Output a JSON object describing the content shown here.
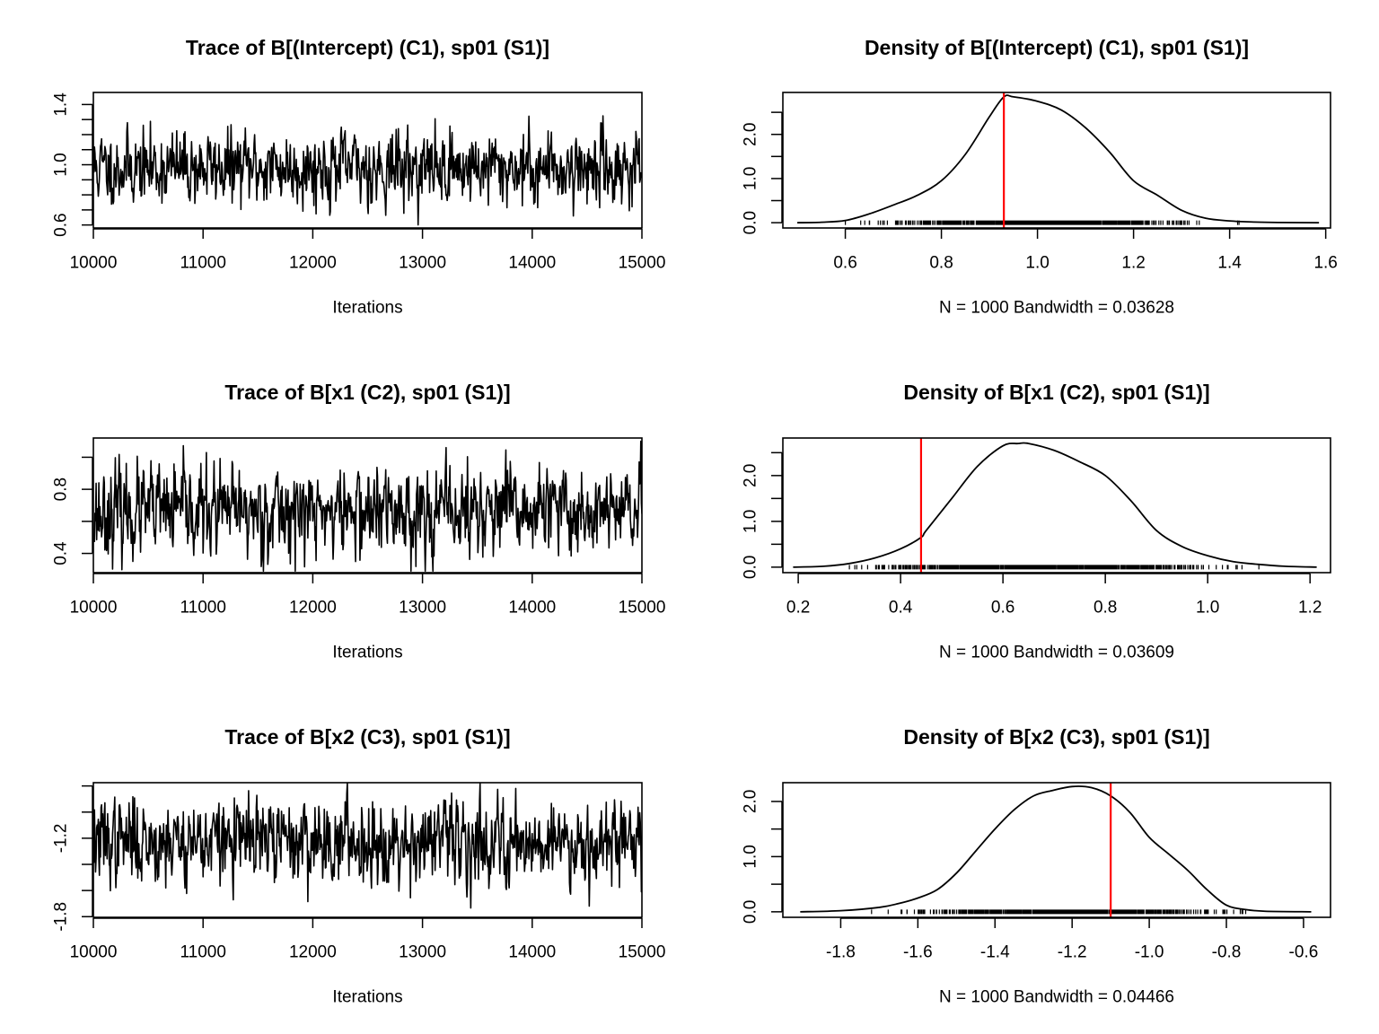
{
  "chart_data": [
    {
      "type": "line",
      "panel": "trace",
      "title": "Trace of B[(Intercept) (C1), sp01 (S1)]",
      "xlabel": "Iterations",
      "ylabel": "",
      "xlim": [
        10000,
        15000
      ],
      "ylim": [
        0.58,
        1.48
      ],
      "xticks": [
        10000,
        11000,
        12000,
        13000,
        14000,
        15000
      ],
      "yticks": [
        0.6,
        0.7,
        0.8,
        0.9,
        1.0,
        1.1,
        1.2,
        1.3,
        1.4
      ],
      "ytick_labels": [
        "0.6",
        "",
        "",
        "",
        "1.0",
        "",
        "",
        "",
        "1.4"
      ],
      "grid": false,
      "series": [
        {
          "color": "#000000",
          "n": 1000,
          "start": 10005,
          "step": 5,
          "mean": 0.98,
          "sd": 0.12,
          "min": 0.6,
          "max": 1.47,
          "phi": 0.3,
          "seed": 11
        }
      ]
    },
    {
      "type": "line",
      "panel": "density",
      "title": "Density of B[(Intercept) (C1), sp01 (S1)]",
      "xlabel": "N = 1000   Bandwidth = 0.03628",
      "ylabel": "",
      "xlim": [
        0.47,
        1.61
      ],
      "ylim": [
        -0.12,
        2.95
      ],
      "xticks": [
        0.6,
        0.8,
        1.0,
        1.2,
        1.4,
        1.6
      ],
      "xtick_labels": [
        "0.6",
        "0.8",
        "1.0",
        "1.2",
        "1.4",
        "1.6"
      ],
      "yticks": [
        0.0,
        0.5,
        1.0,
        1.5,
        2.0,
        2.5
      ],
      "ytick_labels": [
        "0.0",
        "",
        "1.0",
        "",
        "2.0",
        ""
      ],
      "grid": false,
      "x": [
        0.5,
        0.55,
        0.6,
        0.65,
        0.7,
        0.75,
        0.8,
        0.85,
        0.9,
        0.93,
        0.95,
        1.0,
        1.05,
        1.1,
        1.15,
        1.2,
        1.25,
        1.3,
        1.35,
        1.4,
        1.45,
        1.5,
        1.586
      ],
      "y": [
        0.0,
        0.01,
        0.05,
        0.2,
        0.4,
        0.62,
        0.95,
        1.55,
        2.4,
        2.85,
        2.85,
        2.75,
        2.55,
        2.15,
        1.6,
        0.95,
        0.62,
        0.28,
        0.1,
        0.04,
        0.015,
        0.005,
        0.0
      ],
      "rug": {
        "n": 1000,
        "mean": 0.99,
        "sd": 0.135,
        "min": 0.6,
        "max": 1.48
      },
      "reference_line": {
        "x": 0.93,
        "color": "#ff0000"
      }
    },
    {
      "type": "line",
      "panel": "trace",
      "title": "Trace of B[x1 (C2), sp01 (S1)]",
      "xlabel": "Iterations",
      "ylabel": "",
      "xlim": [
        10000,
        15000
      ],
      "ylim": [
        0.28,
        1.12
      ],
      "xticks": [
        10000,
        11000,
        12000,
        13000,
        14000,
        15000
      ],
      "yticks": [
        0.4,
        0.6,
        0.8,
        1.0
      ],
      "ytick_labels": [
        "0.4",
        "",
        "0.8",
        ""
      ],
      "grid": false,
      "series": [
        {
          "color": "#000000",
          "n": 1000,
          "start": 10005,
          "step": 5,
          "mean": 0.66,
          "sd": 0.14,
          "min": 0.29,
          "max": 1.1,
          "phi": 0.3,
          "seed": 23
        }
      ]
    },
    {
      "type": "line",
      "panel": "density",
      "title": "Density of B[x1 (C2), sp01 (S1)]",
      "xlabel": "N = 1000   Bandwidth = 0.03609",
      "ylabel": "",
      "xlim": [
        0.17,
        1.24
      ],
      "ylim": [
        -0.12,
        2.82
      ],
      "xticks": [
        0.2,
        0.4,
        0.6,
        0.8,
        1.0,
        1.2
      ],
      "xtick_labels": [
        "0.2",
        "0.4",
        "0.6",
        "0.8",
        "1.0",
        "1.2"
      ],
      "yticks": [
        0.0,
        0.5,
        1.0,
        1.5,
        2.0,
        2.5
      ],
      "ytick_labels": [
        "0.0",
        "",
        "1.0",
        "",
        "2.0",
        ""
      ],
      "grid": false,
      "x": [
        0.19,
        0.25,
        0.3,
        0.35,
        0.4,
        0.44,
        0.45,
        0.5,
        0.55,
        0.6,
        0.63,
        0.65,
        0.7,
        0.75,
        0.8,
        0.85,
        0.9,
        0.95,
        1.0,
        1.05,
        1.1,
        1.15,
        1.213
      ],
      "y": [
        0.0,
        0.02,
        0.08,
        0.2,
        0.4,
        0.65,
        0.8,
        1.5,
        2.2,
        2.65,
        2.7,
        2.7,
        2.55,
        2.3,
        2.0,
        1.45,
        0.8,
        0.45,
        0.25,
        0.12,
        0.06,
        0.02,
        0.0
      ],
      "rug": {
        "n": 1000,
        "mean": 0.67,
        "sd": 0.15,
        "min": 0.3,
        "max": 1.1
      },
      "reference_line": {
        "x": 0.44,
        "color": "#ff0000"
      }
    },
    {
      "type": "line",
      "panel": "trace",
      "title": "Trace of B[x2 (C3), sp01 (S1)]",
      "xlabel": "Iterations",
      "ylabel": "",
      "xlim": [
        10000,
        15000
      ],
      "ylim": [
        -1.805,
        -0.775
      ],
      "xticks": [
        10000,
        11000,
        12000,
        13000,
        14000,
        15000
      ],
      "yticks": [
        -1.8,
        -1.6,
        -1.4,
        -1.2,
        -1.0,
        -0.8
      ],
      "ytick_labels": [
        "-1.8",
        "",
        "",
        "-1.2",
        "",
        ""
      ],
      "grid": false,
      "series": [
        {
          "color": "#000000",
          "n": 1000,
          "start": 10005,
          "step": 5,
          "mean": -1.22,
          "sd": 0.16,
          "min": -1.79,
          "max": -0.78,
          "phi": 0.3,
          "seed": 37
        }
      ]
    },
    {
      "type": "line",
      "panel": "density",
      "title": "Density of B[x2 (C3), sp01 (S1)]",
      "xlabel": "N = 1000   Bandwidth = 0.04466",
      "ylabel": "",
      "xlim": [
        -1.95,
        -0.53
      ],
      "ylim": [
        -0.1,
        2.34
      ],
      "xticks": [
        -1.8,
        -1.6,
        -1.4,
        -1.2,
        -1.0,
        -0.8,
        -0.6
      ],
      "xtick_labels": [
        "-1.8",
        "-1.6",
        "-1.4",
        "-1.2",
        "-1.0",
        "-0.8",
        "-0.6"
      ],
      "yticks": [
        0.0,
        0.5,
        1.0,
        1.5,
        2.0
      ],
      "ytick_labels": [
        "0.0",
        "",
        "1.0",
        "",
        "2.0"
      ],
      "grid": false,
      "x": [
        -1.905,
        -1.8,
        -1.7,
        -1.65,
        -1.6,
        -1.55,
        -1.5,
        -1.45,
        -1.4,
        -1.35,
        -1.3,
        -1.25,
        -1.2,
        -1.15,
        -1.1,
        -1.05,
        -1.0,
        -0.95,
        -0.9,
        -0.85,
        -0.8,
        -0.75,
        -0.7,
        -0.58
      ],
      "y": [
        0.0,
        0.02,
        0.08,
        0.15,
        0.25,
        0.4,
        0.7,
        1.1,
        1.5,
        1.85,
        2.1,
        2.2,
        2.27,
        2.25,
        2.1,
        1.8,
        1.35,
        1.05,
        0.75,
        0.4,
        0.12,
        0.04,
        0.01,
        0.0
      ],
      "rug": {
        "n": 1000,
        "mean": -1.21,
        "sd": 0.175,
        "min": -1.72,
        "max": -0.75
      },
      "reference_line": {
        "x": -1.1,
        "color": "#ff0000"
      }
    }
  ]
}
